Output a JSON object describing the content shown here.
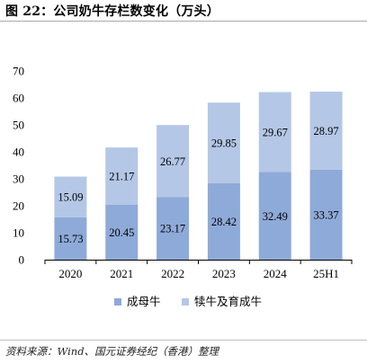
{
  "header": {
    "title": "图 22：公司奶牛存栏数变化（万头）"
  },
  "footer": {
    "source": "资料来源：Wind、国元证券经纪（香港）整理"
  },
  "chart_data": {
    "type": "bar",
    "stacked": true,
    "categories": [
      "2020",
      "2021",
      "2022",
      "2023",
      "2024",
      "25H1"
    ],
    "series": [
      {
        "name": "成母牛",
        "values": [
          15.73,
          20.45,
          23.17,
          28.42,
          32.49,
          33.37
        ],
        "color": "#8eaad8"
      },
      {
        "name": "犊牛及育成牛",
        "values": [
          15.09,
          21.17,
          26.77,
          29.85,
          29.67,
          28.97
        ],
        "color": "#b4c7e6"
      }
    ],
    "ylim": [
      0,
      70
    ],
    "yticks": [
      "0",
      "10",
      "20",
      "30",
      "40",
      "50",
      "60",
      "70"
    ],
    "value_labels": [
      [
        "15.73",
        "20.45",
        "23.17",
        "28.42",
        "32.49",
        "33.37"
      ],
      [
        "15.09",
        "21.17",
        "26.77",
        "29.85",
        "29.67",
        "28.97"
      ]
    ],
    "grid": false,
    "legend": "bottom"
  }
}
